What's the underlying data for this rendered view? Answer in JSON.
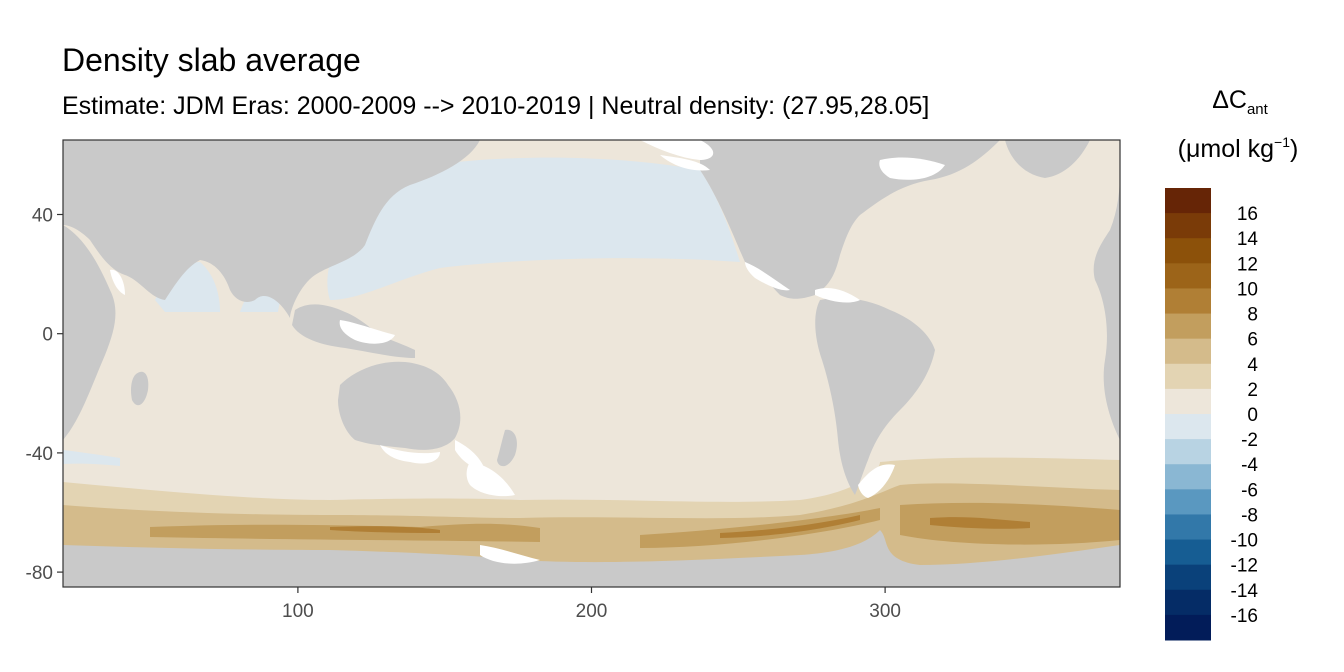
{
  "title": "Density slab average",
  "subtitle": "Estimate: JDM Eras: 2000-2009 --> 2010-2019 | Neutral density: (27.95,28.05]",
  "legend": {
    "title_symbol": "ΔC",
    "title_subscript": "ant",
    "unit_prefix": "(μmol kg",
    "unit_exponent": "−1",
    "unit_suffix": ")",
    "labels": [
      "16",
      "14",
      "12",
      "10",
      "8",
      "6",
      "4",
      "2",
      "0",
      "-2",
      "-4",
      "-6",
      "-8",
      "-10",
      "-12",
      "-14",
      "-16"
    ],
    "colors": [
      "#662506",
      "#7a3b08",
      "#8c510a",
      "#9c6419",
      "#b07f35",
      "#c29e5e",
      "#d4bb8b",
      "#e3d4b3",
      "#ede6da",
      "#dce7ee",
      "#b8d3e3",
      "#8ab7d3",
      "#5a98c0",
      "#3278a9",
      "#165d93",
      "#0a417a",
      "#052c66",
      "#021c59"
    ]
  },
  "axes": {
    "x_ticks": [
      "100",
      "200",
      "300"
    ],
    "y_ticks": [
      "40",
      "0",
      "-40",
      "-80"
    ]
  },
  "map_data": {
    "type": "lon-lat field",
    "variable": "ΔCant",
    "x_range": [
      20,
      380
    ],
    "y_range": [
      -85,
      65
    ],
    "colors": {
      "land": "#c9c9c9",
      "no_data": "#ffffff",
      "value_0_2": "#ede6da",
      "value_m2_0": "#dce7ee",
      "value_2_4": "#e3d4b3",
      "value_4_6": "#d4bb8b",
      "value_6_8": "#c29e5e",
      "value_8_10": "#b07f35"
    }
  }
}
